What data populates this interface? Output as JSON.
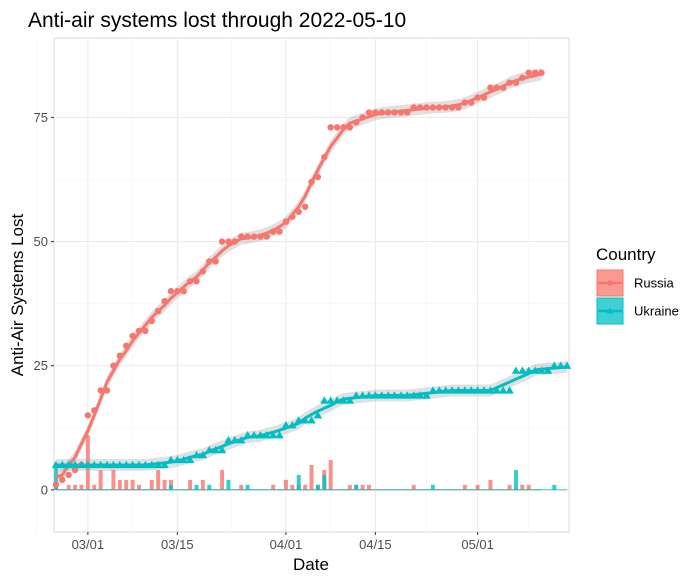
{
  "chart_data": {
    "type": "scatter",
    "title": "Anti-air systems lost through 2022-05-10",
    "xlabel": "Date",
    "ylabel": "Anti-Air Systems Lost",
    "x_tick_labels": [
      "03/01",
      "03/15",
      "04/01",
      "04/15",
      "05/01"
    ],
    "x_tick_days": [
      5,
      19,
      36,
      50,
      66
    ],
    "xlim_days": [
      -0.3,
      80.3
    ],
    "y_ticks": [
      0,
      25,
      50,
      75
    ],
    "ylim": [
      -8.5,
      91
    ],
    "day0": "2022-02-24",
    "legend": {
      "title": "Country",
      "position": "right"
    },
    "series": [
      {
        "name": "Russia",
        "color": "#F8766D",
        "marker": "circle",
        "cumulative": [
          1,
          2,
          3,
          4,
          5,
          15,
          16,
          20,
          20,
          25,
          27,
          29,
          31,
          32,
          32,
          34,
          36,
          38,
          40,
          40,
          40,
          42,
          42,
          44,
          46,
          46,
          50,
          50,
          50,
          51,
          51,
          51,
          51,
          51,
          52,
          52,
          54,
          55,
          56,
          57,
          62,
          63,
          67,
          73,
          73,
          73,
          73,
          74,
          75,
          76,
          76,
          76,
          76,
          76,
          76,
          76,
          77,
          77,
          77,
          77,
          77,
          77,
          77,
          77,
          78,
          78,
          79,
          79,
          81,
          81,
          81,
          82,
          82,
          83,
          84,
          84,
          84
        ],
        "daily": [
          1,
          0,
          1,
          1,
          1,
          11,
          1,
          4,
          0,
          4,
          2,
          2,
          2,
          1,
          0,
          2,
          4,
          2,
          2,
          0,
          0,
          2,
          0,
          2,
          0,
          0,
          4,
          0,
          0,
          1,
          0,
          0,
          0,
          0,
          1,
          0,
          2,
          1,
          1,
          1,
          5,
          1,
          4,
          6,
          0,
          0,
          1,
          1,
          1,
          1,
          0,
          0,
          0,
          0,
          0,
          0,
          1,
          0,
          0,
          0,
          0,
          0,
          0,
          0,
          1,
          0,
          1,
          0,
          2,
          0,
          0,
          1,
          0,
          1,
          1,
          0,
          0
        ]
      },
      {
        "name": "Ukraine",
        "color": "#00BFC4",
        "marker": "triangle",
        "cumulative": [
          5,
          5,
          5,
          5,
          5,
          5,
          5,
          5,
          5,
          5,
          5,
          5,
          5,
          5,
          5,
          5,
          5,
          5,
          6,
          6,
          6,
          6,
          7,
          7,
          8,
          8,
          8,
          10,
          10,
          10,
          11,
          11,
          11,
          11,
          11,
          11,
          13,
          13,
          14,
          14,
          14,
          15,
          18,
          18,
          18,
          18,
          18,
          19,
          19,
          19,
          19,
          19,
          19,
          19,
          19,
          19,
          19,
          19,
          19,
          20,
          20,
          20,
          20,
          20,
          20,
          20,
          20,
          20,
          20,
          20,
          20,
          20,
          24,
          24,
          24,
          24,
          24,
          24,
          25,
          25,
          25
        ],
        "daily": [
          5,
          0,
          0,
          0,
          0,
          0,
          0,
          0,
          0,
          0,
          0,
          0,
          0,
          0,
          0,
          0,
          0,
          0,
          1,
          0,
          0,
          0,
          1,
          0,
          1,
          0,
          0,
          2,
          0,
          0,
          1,
          0,
          0,
          0,
          0,
          0,
          0,
          0,
          3,
          0,
          0,
          1,
          3,
          0,
          0,
          0,
          0,
          1,
          0,
          0,
          0,
          0,
          0,
          0,
          0,
          0,
          0,
          0,
          0,
          1,
          0,
          0,
          0,
          0,
          0,
          0,
          0,
          0,
          0,
          0,
          0,
          0,
          4,
          0,
          0,
          0,
          0,
          0,
          1,
          0,
          0
        ]
      }
    ]
  }
}
